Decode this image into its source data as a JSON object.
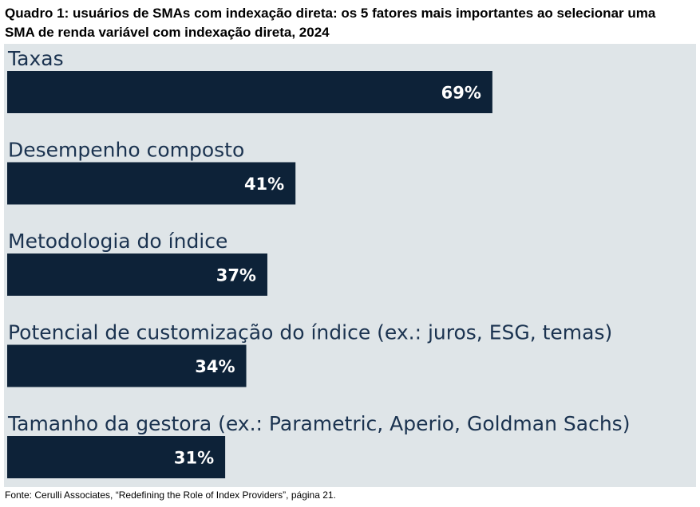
{
  "chart_data": {
    "type": "bar",
    "title": "Quadro 1: usuários de SMAs com indexação direta: os 5 fatores mais importantes ao selecionar uma SMA de renda variável com indexação direta, 2024",
    "categories": [
      "Taxas",
      "Desempenho composto",
      "Metodologia do índice",
      "Potencial de customização do índice (ex.: juros, ESG, temas)",
      "Tamanho da gestora (ex.: Parametric, Aperio, Goldman Sachs)"
    ],
    "values": [
      69,
      41,
      37,
      34,
      31
    ],
    "value_labels": [
      "69%",
      "41%",
      "37%",
      "34%",
      "31%"
    ],
    "color": "#0d2238",
    "source": "Fonte: Cerulli Associates, “Redefining the Role of Index Providers”, página 21."
  }
}
